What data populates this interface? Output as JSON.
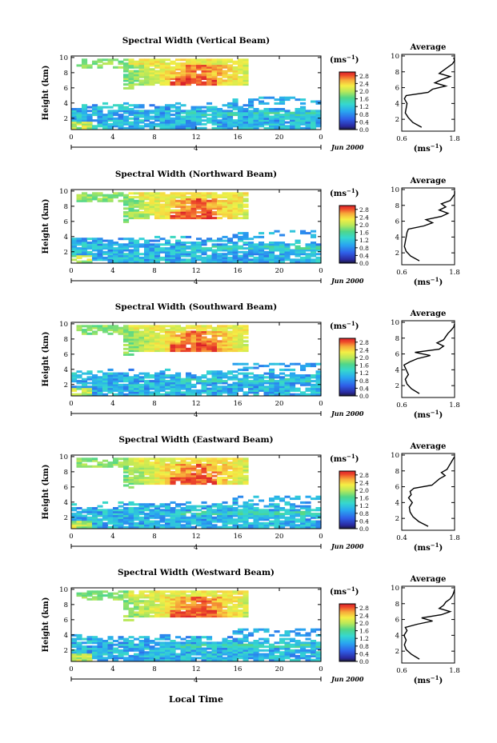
{
  "figure": {
    "xlabel": "Local Time",
    "date_label": "Jun 2000",
    "day_label": "4",
    "colorbar_unit_prefix": "(ms",
    "colorbar_unit_exp": "−1",
    "colorbar_unit_suffix": ")",
    "average_title": "Average",
    "average_xlabel_prefix": "(ms",
    "average_xlabel_exp": "−1",
    "average_xlabel_suffix": ")"
  },
  "chart_data": [
    {
      "type": "heatmap",
      "title": "Spectral Width (Vertical Beam)",
      "ylabel": "Height (km)",
      "xlabel": "Local Time",
      "xlim": [
        0,
        24
      ],
      "ylim": [
        0.5,
        10.2
      ],
      "xticks": [
        "0",
        "4",
        "8",
        "12",
        "16",
        "20",
        "0"
      ],
      "yticks": [
        "2",
        "4",
        "6",
        "8",
        "10"
      ],
      "colorbar": {
        "ticks": [
          "0.0",
          "0.4",
          "0.8",
          "1.2",
          "1.6",
          "2.0",
          "2.4",
          "2.8"
        ],
        "range": [
          0,
          3.0
        ]
      },
      "average": {
        "title": "Average",
        "xlim": [
          0.6,
          1.8
        ],
        "xticks": [
          "0.6",
          "1.8"
        ],
        "heights": [
          1.0,
          1.6,
          2.2,
          2.8,
          3.4,
          4.0,
          4.6,
          5.0,
          5.4,
          5.8,
          6.2,
          6.6,
          7.0,
          7.4,
          7.8,
          8.2,
          8.6,
          9.0,
          9.4,
          9.8
        ],
        "values": [
          1.05,
          0.85,
          0.75,
          0.68,
          0.7,
          0.72,
          0.66,
          0.7,
          1.2,
          1.3,
          1.6,
          1.35,
          1.5,
          1.7,
          1.45,
          1.55,
          1.65,
          1.75,
          1.8,
          1.78
        ]
      }
    },
    {
      "type": "heatmap",
      "title": "Spectral Width (Northward Beam)",
      "ylabel": "Height (km)",
      "xlabel": "Local Time",
      "xlim": [
        0,
        24
      ],
      "ylim": [
        0.5,
        10.2
      ],
      "xticks": [
        "0",
        "4",
        "8",
        "12",
        "16",
        "20",
        "0"
      ],
      "yticks": [
        "2",
        "4",
        "6",
        "8",
        "10"
      ],
      "colorbar": {
        "ticks": [
          "0.0",
          "0.4",
          "0.8",
          "1.2",
          "1.6",
          "2.0",
          "2.4",
          "2.8"
        ],
        "range": [
          0,
          3.0
        ]
      },
      "average": {
        "title": "Average",
        "xlim": [
          0.6,
          1.8
        ],
        "xticks": [
          "0.6",
          "1.8"
        ],
        "heights": [
          1.0,
          1.6,
          2.2,
          2.8,
          3.4,
          4.0,
          4.6,
          5.0,
          5.4,
          5.8,
          6.2,
          6.6,
          7.0,
          7.4,
          7.8,
          8.2,
          8.6,
          9.0,
          9.4,
          9.8
        ],
        "values": [
          1.0,
          0.8,
          0.7,
          0.66,
          0.68,
          0.7,
          0.72,
          0.75,
          1.1,
          1.3,
          1.15,
          1.5,
          1.65,
          1.45,
          1.6,
          1.5,
          1.7,
          1.75,
          1.8,
          1.8
        ]
      }
    },
    {
      "type": "heatmap",
      "title": "Spectral Width (Southward Beam)",
      "ylabel": "Height (km)",
      "xlabel": "Local Time",
      "xlim": [
        0,
        24
      ],
      "ylim": [
        0.5,
        10.2
      ],
      "xticks": [
        "0",
        "4",
        "8",
        "12",
        "16",
        "20",
        "0"
      ],
      "yticks": [
        "2",
        "4",
        "6",
        "8",
        "10"
      ],
      "colorbar": {
        "ticks": [
          "0.0",
          "0.4",
          "0.8",
          "1.2",
          "1.6",
          "2.0",
          "2.4",
          "2.8"
        ],
        "range": [
          0,
          3.0
        ]
      },
      "average": {
        "title": "Average",
        "xlim": [
          0.6,
          1.8
        ],
        "xticks": [
          "0.6",
          "1.8"
        ],
        "heights": [
          1.0,
          1.6,
          2.2,
          2.8,
          3.4,
          4.0,
          4.6,
          5.0,
          5.4,
          5.8,
          6.2,
          6.6,
          7.0,
          7.4,
          7.8,
          8.2,
          8.6,
          9.0,
          9.4,
          9.8
        ],
        "values": [
          1.0,
          0.82,
          0.72,
          0.68,
          0.75,
          0.7,
          0.65,
          0.78,
          0.95,
          1.25,
          0.9,
          1.45,
          1.55,
          1.4,
          1.55,
          1.6,
          1.65,
          1.72,
          1.78,
          1.8
        ]
      }
    },
    {
      "type": "heatmap",
      "title": "Spectral Width (Eastward Beam)",
      "ylabel": "Height (km)",
      "xlabel": "Local Time",
      "xlim": [
        0,
        24
      ],
      "ylim": [
        0.5,
        10.2
      ],
      "xticks": [
        "0",
        "4",
        "8",
        "12",
        "16",
        "20",
        "0"
      ],
      "yticks": [
        "2",
        "4",
        "6",
        "8",
        "10"
      ],
      "colorbar": {
        "ticks": [
          "0.0",
          "0.4",
          "0.8",
          "1.2",
          "1.6",
          "2.0",
          "2.4",
          "2.8"
        ],
        "range": [
          0,
          3.0
        ]
      },
      "average": {
        "title": "Average",
        "xlim": [
          0.4,
          1.8
        ],
        "xticks": [
          "0.4",
          "1.8"
        ],
        "heights": [
          1.0,
          1.6,
          2.2,
          2.8,
          3.4,
          4.0,
          4.6,
          5.0,
          5.4,
          5.8,
          6.2,
          6.6,
          7.0,
          7.4,
          7.8,
          8.2,
          8.6,
          9.0,
          9.4,
          9.8
        ],
        "values": [
          1.1,
          0.85,
          0.7,
          0.62,
          0.6,
          0.68,
          0.58,
          0.65,
          0.62,
          0.72,
          1.2,
          1.3,
          1.4,
          1.55,
          1.45,
          1.6,
          1.65,
          1.7,
          1.75,
          1.8
        ]
      }
    },
    {
      "type": "heatmap",
      "title": "Spectral Width (Westward Beam)",
      "ylabel": "Height (km)",
      "xlabel": "Local Time",
      "xlim": [
        0,
        24
      ],
      "ylim": [
        0.5,
        10.2
      ],
      "xticks": [
        "0",
        "4",
        "8",
        "12",
        "16",
        "20",
        "0"
      ],
      "yticks": [
        "2",
        "4",
        "6",
        "8",
        "10"
      ],
      "colorbar": {
        "ticks": [
          "0.0",
          "0.4",
          "0.8",
          "1.2",
          "1.6",
          "2.0",
          "2.4",
          "2.8"
        ],
        "range": [
          0,
          3.0
        ]
      },
      "average": {
        "title": "Average",
        "xlim": [
          0.6,
          1.8
        ],
        "xticks": [
          "0.6",
          "1.8"
        ],
        "heights": [
          1.0,
          1.6,
          2.2,
          2.8,
          3.4,
          4.0,
          4.6,
          5.0,
          5.4,
          5.8,
          6.2,
          6.6,
          7.0,
          7.4,
          7.8,
          8.2,
          8.6,
          9.0,
          9.4,
          9.8
        ],
        "values": [
          1.0,
          0.82,
          0.7,
          0.66,
          0.7,
          0.65,
          0.72,
          0.68,
          0.95,
          1.3,
          1.05,
          1.5,
          1.7,
          1.45,
          1.55,
          1.6,
          1.7,
          1.75,
          1.78,
          1.8
        ]
      }
    }
  ]
}
